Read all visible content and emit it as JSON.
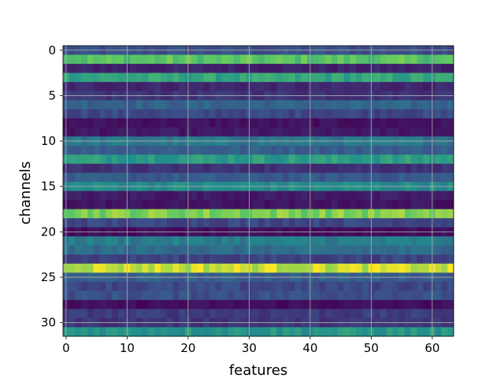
{
  "chart_data": {
    "type": "heatmap",
    "title": "",
    "xlabel": "features",
    "ylabel": "channels",
    "xlim": [
      -0.5,
      63.5
    ],
    "ylim": [
      31.5,
      -0.5
    ],
    "grid": true,
    "colormap": "viridis",
    "n_rows": 32,
    "n_cols": 64,
    "xticks": [
      0,
      10,
      20,
      30,
      40,
      50,
      60
    ],
    "xtick_labels": [
      "0",
      "10",
      "20",
      "30",
      "40",
      "50",
      "60"
    ],
    "yticks": [
      0,
      5,
      10,
      15,
      20,
      25,
      30
    ],
    "ytick_labels": [
      "0",
      "5",
      "10",
      "15",
      "20",
      "25",
      "30"
    ],
    "row_levels": [
      0.24,
      0.72,
      0.1,
      0.58,
      0.12,
      0.16,
      0.32,
      0.22,
      0.05,
      0.07,
      0.4,
      0.3,
      0.55,
      0.15,
      0.28,
      0.48,
      0.08,
      0.06,
      0.8,
      0.22,
      0.04,
      0.42,
      0.35,
      0.2,
      0.92,
      0.3,
      0.22,
      0.25,
      0.04,
      0.18,
      0.16,
      0.52
    ]
  }
}
